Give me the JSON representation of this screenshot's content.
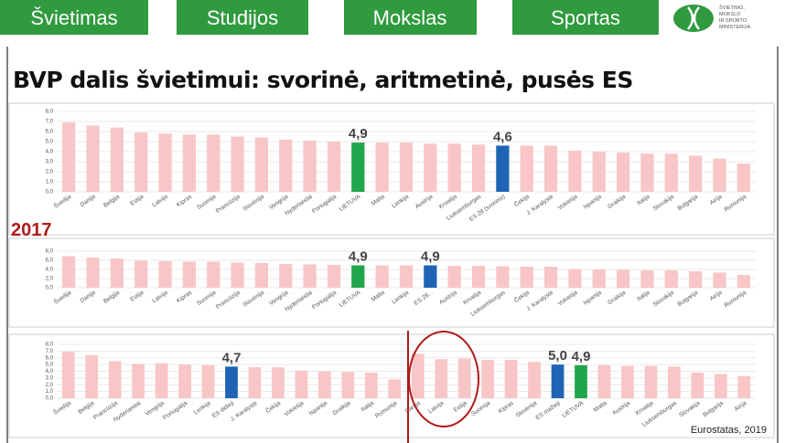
{
  "header": {
    "tabs": [
      "Švietimas",
      "Studijos",
      "Mokslas",
      "Sportas"
    ],
    "logo_text": [
      "ŠVIETIMO,",
      "MOKSLO",
      "IR SPORTO",
      "MINISTERIJA"
    ]
  },
  "title": "BVP dalis švietimui: svorinė, aritmetinė, pusės ES",
  "year": "2017",
  "source": "Eurostatas, 2019",
  "chart_data": [
    {
      "type": "bar",
      "categories": [
        "Švedija",
        "Danija",
        "Belgija",
        "Estija",
        "Latvija",
        "Kipras",
        "Suomija",
        "Prancūzija",
        "Slovėnija",
        "Vengrija",
        "Nyderlandai",
        "Portugalija",
        "LIETUVA",
        "Malta",
        "Lenkija",
        "Austrija",
        "Kroatija",
        "Liuksemburgas",
        "ES 28 (svorinis)",
        "Čekija",
        "J. Karalystė",
        "Vokietija",
        "Ispanija",
        "Graikija",
        "Italija",
        "Slovakija",
        "Bulgarija",
        "Airija",
        "Rumunija"
      ],
      "values": [
        6.9,
        6.6,
        6.4,
        5.9,
        5.8,
        5.7,
        5.7,
        5.5,
        5.4,
        5.2,
        5.1,
        5.0,
        4.9,
        4.9,
        4.9,
        4.8,
        4.8,
        4.7,
        4.6,
        4.6,
        4.6,
        4.1,
        4.0,
        3.9,
        3.8,
        3.8,
        3.6,
        3.3,
        2.8
      ],
      "value_labels": [
        null,
        null,
        null,
        null,
        null,
        null,
        null,
        null,
        null,
        null,
        null,
        null,
        "4,9",
        null,
        null,
        null,
        null,
        null,
        "4,6",
        null,
        null,
        null,
        null,
        null,
        null,
        null,
        null,
        null,
        null
      ],
      "colors": [
        "#f8c6c6",
        "#f8c6c6",
        "#f8c6c6",
        "#f8c6c6",
        "#f8c6c6",
        "#f8c6c6",
        "#f8c6c6",
        "#f8c6c6",
        "#f8c6c6",
        "#f8c6c6",
        "#f8c6c6",
        "#f8c6c6",
        "#1fa64a",
        "#f8c6c6",
        "#f8c6c6",
        "#f8c6c6",
        "#f8c6c6",
        "#f8c6c6",
        "#1f64b4",
        "#f8c6c6",
        "#f8c6c6",
        "#f8c6c6",
        "#f8c6c6",
        "#f8c6c6",
        "#f8c6c6",
        "#f8c6c6",
        "#f8c6c6",
        "#f8c6c6",
        "#f8c6c6"
      ],
      "ylim": [
        0,
        8
      ],
      "yticks": [
        {
          "value": 0,
          "label": "0,0"
        },
        {
          "value": 1,
          "label": "1,0"
        },
        {
          "value": 2,
          "label": "2,0"
        },
        {
          "value": 3,
          "label": "3,0"
        },
        {
          "value": 4,
          "label": "4,0"
        },
        {
          "value": 5,
          "label": "5,0"
        },
        {
          "value": 6,
          "label": "6,0"
        },
        {
          "value": 7,
          "label": "7,0"
        },
        {
          "value": 8,
          "label": "8,0"
        }
      ],
      "grid": true
    },
    {
      "type": "bar",
      "categories": [
        "Švedija",
        "Danija",
        "Belgija",
        "Estija",
        "Latvija",
        "Kipras",
        "Suomija",
        "Prancūzija",
        "Slovėnija",
        "Vengrija",
        "Nyderlandai",
        "Portugalija",
        "LIETUVA",
        "Malta",
        "Lenkija",
        "ES 28...",
        "Austrija",
        "Kroatija",
        "Liuksemburgas",
        "Čekija",
        "J. Karalystė",
        "Vokietija",
        "Ispanija",
        "Graikija",
        "Italija",
        "Slovakija",
        "Bulgarija",
        "Airija",
        "Rumunija"
      ],
      "values": [
        6.9,
        6.6,
        6.4,
        5.9,
        5.8,
        5.7,
        5.7,
        5.5,
        5.4,
        5.2,
        5.1,
        5.0,
        4.9,
        4.9,
        4.9,
        4.9,
        4.8,
        4.8,
        4.7,
        4.6,
        4.6,
        4.1,
        4.0,
        3.9,
        3.8,
        3.8,
        3.6,
        3.3,
        2.8
      ],
      "value_labels": [
        null,
        null,
        null,
        null,
        null,
        null,
        null,
        null,
        null,
        null,
        null,
        null,
        "4,9",
        null,
        null,
        "4,9",
        null,
        null,
        null,
        null,
        null,
        null,
        null,
        null,
        null,
        null,
        null,
        null,
        null
      ],
      "colors": [
        "#f8c6c6",
        "#f8c6c6",
        "#f8c6c6",
        "#f8c6c6",
        "#f8c6c6",
        "#f8c6c6",
        "#f8c6c6",
        "#f8c6c6",
        "#f8c6c6",
        "#f8c6c6",
        "#f8c6c6",
        "#f8c6c6",
        "#1fa64a",
        "#f8c6c6",
        "#f8c6c6",
        "#1f64b4",
        "#f8c6c6",
        "#f8c6c6",
        "#f8c6c6",
        "#f8c6c6",
        "#f8c6c6",
        "#f8c6c6",
        "#f8c6c6",
        "#f8c6c6",
        "#f8c6c6",
        "#f8c6c6",
        "#f8c6c6",
        "#f8c6c6",
        "#f8c6c6"
      ],
      "ylim": [
        0,
        8
      ],
      "yticks": [
        {
          "value": 0,
          "label": "0,0"
        },
        {
          "value": 2,
          "label": "2,0"
        },
        {
          "value": 4,
          "label": "4,0"
        },
        {
          "value": 6,
          "label": "6,0"
        },
        {
          "value": 8,
          "label": "8,0"
        }
      ],
      "grid": true
    },
    {
      "type": "bar",
      "categories": [
        "Švedija",
        "Belgija",
        "Prancūzija",
        "Nyderlandai",
        "Vengrija",
        "Portugalija",
        "Lenkija",
        "ES didieji",
        "J. Karalystė",
        "Čekija",
        "Vokietija",
        "Ispanija",
        "Graikija",
        "Italija",
        "Rumunija",
        "Danija",
        "Latvija",
        "Estija",
        "Suomija",
        "Kipras",
        "Slovėnija",
        "ES mažieji",
        "LIETUVA",
        "Malta",
        "Austrija",
        "Kroatija",
        "Liuksemburgas",
        "Slovakija",
        "Bulgarija",
        "Airija"
      ],
      "values": [
        6.9,
        6.4,
        5.5,
        5.1,
        5.2,
        5.0,
        4.9,
        4.7,
        4.6,
        4.6,
        4.1,
        4.0,
        3.9,
        3.8,
        2.8,
        6.6,
        5.8,
        5.9,
        5.7,
        5.7,
        5.4,
        5.0,
        4.9,
        4.9,
        4.8,
        4.8,
        4.7,
        3.8,
        3.6,
        3.3
      ],
      "value_labels": [
        null,
        null,
        null,
        null,
        null,
        null,
        null,
        "4,7",
        null,
        null,
        null,
        null,
        null,
        null,
        null,
        null,
        null,
        null,
        null,
        null,
        null,
        "5,0",
        "4,9",
        null,
        null,
        null,
        null,
        null,
        null,
        null
      ],
      "colors": [
        "#f8c6c6",
        "#f8c6c6",
        "#f8c6c6",
        "#f8c6c6",
        "#f8c6c6",
        "#f8c6c6",
        "#f8c6c6",
        "#1f64b4",
        "#f8c6c6",
        "#f8c6c6",
        "#f8c6c6",
        "#f8c6c6",
        "#f8c6c6",
        "#f8c6c6",
        "#f8c6c6",
        "#f8c6c6",
        "#f8c6c6",
        "#f8c6c6",
        "#f8c6c6",
        "#f8c6c6",
        "#f8c6c6",
        "#1f64b4",
        "#1fa64a",
        "#f8c6c6",
        "#f8c6c6",
        "#f8c6c6",
        "#f8c6c6",
        "#f8c6c6",
        "#f8c6c6",
        "#f8c6c6"
      ],
      "ylim": [
        0,
        8
      ],
      "yticks": [
        {
          "value": 0,
          "label": "0,0"
        },
        {
          "value": 1,
          "label": "1,0"
        },
        {
          "value": 2,
          "label": "2,0"
        },
        {
          "value": 3,
          "label": "3,0"
        },
        {
          "value": 4,
          "label": "4,0"
        },
        {
          "value": 5,
          "label": "5,0"
        },
        {
          "value": 6,
          "label": "6,0"
        },
        {
          "value": 7,
          "label": "7,0"
        },
        {
          "value": 8,
          "label": "8,0"
        }
      ],
      "grid": true
    }
  ]
}
